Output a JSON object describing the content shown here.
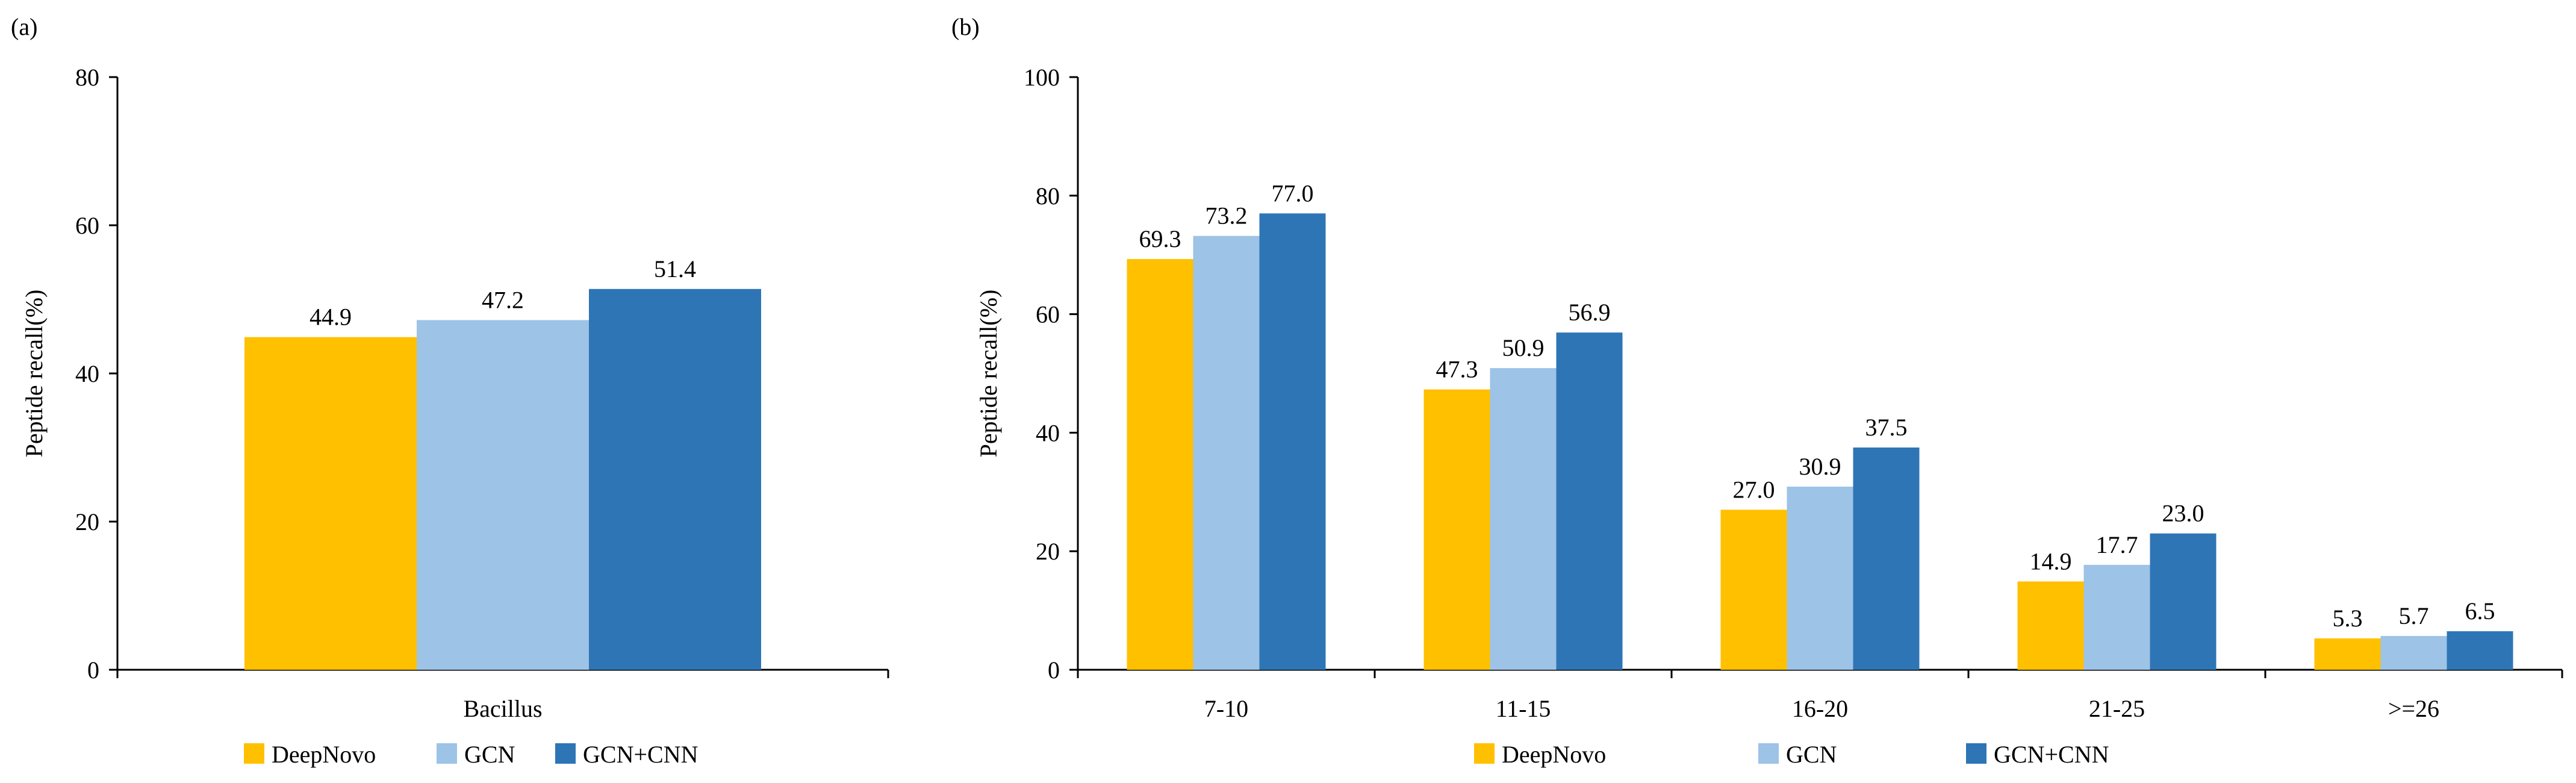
{
  "colors": {
    "DeepNovo": "#FFC000",
    "GCN": "#9DC3E6",
    "GCN+CNN": "#2E75B6",
    "axis": "#000000"
  },
  "chart_data": [
    {
      "panel_label": "(a)",
      "type": "bar",
      "ylabel": "Peptide recall(%)",
      "ylim": [
        0,
        80
      ],
      "yticks": [
        0,
        20,
        40,
        60,
        80
      ],
      "categories": [
        "Bacillus"
      ],
      "series": [
        {
          "name": "DeepNovo",
          "values": [
            44.9
          ],
          "labels": [
            "44.9"
          ]
        },
        {
          "name": "GCN",
          "values": [
            47.2
          ],
          "labels": [
            "47.2"
          ]
        },
        {
          "name": "GCN+CNN",
          "values": [
            51.4
          ],
          "labels": [
            "51.4"
          ]
        }
      ],
      "legend": "bottom",
      "grid": false
    },
    {
      "panel_label": "(b)",
      "type": "bar",
      "ylabel": "Peptide recall(%)",
      "ylim": [
        0,
        100
      ],
      "yticks": [
        0,
        20,
        40,
        60,
        80,
        100
      ],
      "categories": [
        "7-10",
        "11-15",
        "16-20",
        "21-25",
        ">=26"
      ],
      "series": [
        {
          "name": "DeepNovo",
          "values": [
            69.3,
            47.3,
            27.0,
            14.9,
            5.3
          ],
          "labels": [
            "69.3",
            "47.3",
            "27.0",
            "14.9",
            "5.3"
          ]
        },
        {
          "name": "GCN",
          "values": [
            73.2,
            50.9,
            30.9,
            17.7,
            5.7
          ],
          "labels": [
            "73.2",
            "50.9",
            "30.9",
            "17.7",
            "5.7"
          ]
        },
        {
          "name": "GCN+CNN",
          "values": [
            77.0,
            56.9,
            37.5,
            23.0,
            6.5
          ],
          "labels": [
            "77.0",
            "56.9",
            "37.5",
            "23.0",
            "6.5"
          ]
        }
      ],
      "legend": "bottom",
      "grid": false
    }
  ]
}
